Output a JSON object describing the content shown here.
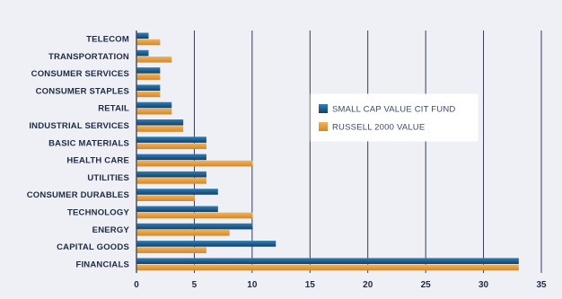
{
  "chart_data": {
    "type": "bar",
    "orientation": "horizontal",
    "categories": [
      "TELECOM",
      "TRANSPORTATION",
      "CONSUMER SERVICES",
      "CONSUMER STAPLES",
      "RETAIL",
      "INDUSTRIAL SERVICES",
      "BASIC MATERIALS",
      "HEALTH CARE",
      "UTILITIES",
      "CONSUMER DURABLES",
      "TECHNOLOGY",
      "ENERGY",
      "CAPITAL GOODS",
      "FINANCIALS"
    ],
    "series": [
      {
        "name": "SMALL CAP VALUE CIT FUND",
        "color": "#1d5d8e",
        "values": [
          1,
          1,
          2,
          2,
          3,
          4,
          6,
          6,
          6,
          7,
          7,
          10,
          12,
          33
        ]
      },
      {
        "name": "RUSSELL 2000 VALUE",
        "color": "#e39b3e",
        "values": [
          2,
          3,
          2,
          2,
          3,
          4,
          6,
          10,
          6,
          5,
          10,
          8,
          6,
          33
        ]
      }
    ],
    "xlim": [
      0,
      35
    ],
    "xticks": [
      "0",
      "5",
      "10",
      "15",
      "20",
      "25",
      "30",
      "35"
    ],
    "grid": "vertical",
    "legend_position": "center-right"
  }
}
